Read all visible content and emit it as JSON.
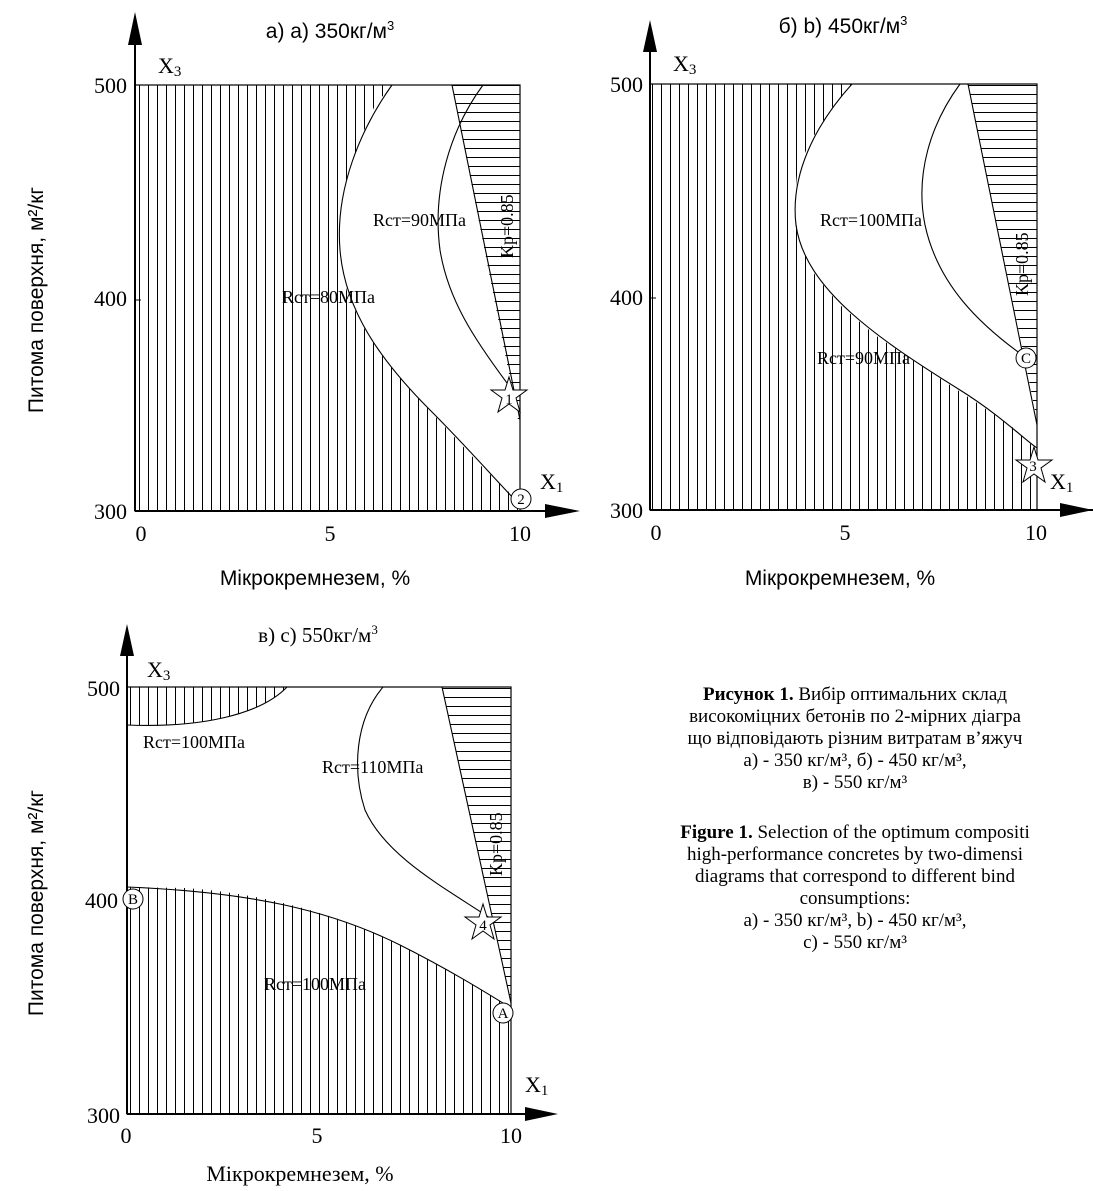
{
  "panels": [
    {
      "id": "a",
      "title_main": "а) a) 350кг/м",
      "title_sup": "3",
      "y_axis_var": "X",
      "y_axis_sub": "3",
      "x_axis_var": "X",
      "x_axis_sub": "1",
      "y_ticks": [
        "300",
        "400",
        "500"
      ],
      "x_ticks": [
        "0",
        "5",
        "10"
      ],
      "x_label": "Мікрокремнезем, %",
      "y_label": "Питома поверхня,  м²/кг",
      "annotations": [
        "Rст=80МПа",
        "Rст=90МПа",
        "Kр=0.85"
      ],
      "markers": [
        "1",
        "2"
      ]
    },
    {
      "id": "b",
      "title_main": "б)  b) 450кг/м",
      "title_sup": "3",
      "y_axis_var": "X",
      "y_axis_sub": "3",
      "x_axis_var": "X",
      "x_axis_sub": "1",
      "y_ticks": [
        "300",
        "400",
        "500"
      ],
      "x_ticks": [
        "0",
        "5",
        "10"
      ],
      "x_label": "Мікрокремнезем, %",
      "annotations": [
        "Rст=100МПа",
        "Rст=90МПа",
        "Kр=0.85"
      ],
      "markers": [
        "C",
        "3"
      ]
    },
    {
      "id": "c",
      "title_main": "в)  c) 550кг/м",
      "title_sup": "3",
      "y_axis_var": "X",
      "y_axis_sub": "3",
      "x_axis_var": "X",
      "x_axis_sub": "1",
      "y_ticks": [
        "300",
        "400",
        "500"
      ],
      "x_ticks": [
        "0",
        "5",
        "10"
      ],
      "x_label": "Мікрокремнезем, %",
      "y_label": "Питома поверхня,  м²/кг",
      "annotations": [
        "Rст=100МПа",
        "Rст=110МПа",
        "Kр=0.85",
        "Rст=100МПа"
      ],
      "markers": [
        "B",
        "4",
        "A"
      ]
    }
  ],
  "caption": {
    "ua_bold": "Рисунок 1.",
    "ua_line1": " Вибір оптимальних склад",
    "ua_line2": "високоміцних бетонів по 2-мірних діагра",
    "ua_line3": "що відповідають різним витратам в’яжуч",
    "ua_line4": "а) - 350 кг/м³, б) - 450 кг/м³,",
    "ua_line5": "в) - 550 кг/м³",
    "en_bold": "Figure 1.",
    "en_line1": " Selection of the optimum compositi",
    "en_line2": "high-performance concretes by two-dimensi",
    "en_line3": "diagrams that correspond to different bind",
    "en_line4": "consumptions:",
    "en_line5": "a) - 350 кг/м³, b) - 450 кг/м³,",
    "en_line6": "c) - 550 кг/м³"
  },
  "chart_data": [
    {
      "type": "contour",
      "x_var": "Мікрокремнезем, %",
      "y_var": "Питома поверхня, м²/кг",
      "xlim": [
        0,
        10
      ],
      "ylim": [
        300,
        500
      ],
      "contours": [
        {
          "label": "Rст=80МПа",
          "points": [
            [
              6.2,
              500
            ],
            [
              5.4,
              440
            ],
            [
              5.6,
              400
            ],
            [
              6.8,
              360
            ],
            [
              8.6,
              325
            ],
            [
              10,
              305
            ]
          ]
        },
        {
          "label": "Rст=90МПа",
          "points": [
            [
              8.4,
              500
            ],
            [
              7.6,
              450
            ],
            [
              7.8,
              415
            ],
            [
              8.6,
              385
            ],
            [
              9.7,
              355
            ]
          ]
        },
        {
          "label": "Kр=0.85",
          "points": [
            [
              8.2,
              500
            ],
            [
              10,
              350
            ]
          ]
        }
      ],
      "markers": [
        {
          "label": "1",
          "x": 9.7,
          "y": 355,
          "shape": "star"
        },
        {
          "label": "2",
          "x": 10,
          "y": 305,
          "shape": "circle"
        }
      ]
    },
    {
      "type": "contour",
      "x_var": "Мікрокремнезем, %",
      "y_var": "Питома поверхня, м²/кг",
      "xlim": [
        0,
        10
      ],
      "ylim": [
        300,
        500
      ],
      "contours": [
        {
          "label": "Rст=90МПа",
          "points": [
            [
              4.9,
              500
            ],
            [
              3.8,
              450
            ],
            [
              4.3,
              410
            ],
            [
              6.0,
              375
            ],
            [
              8.2,
              345
            ],
            [
              10,
              325
            ]
          ]
        },
        {
          "label": "Rст=100МПа",
          "points": [
            [
              8.0,
              500
            ],
            [
              6.9,
              450
            ],
            [
              7.4,
              410
            ],
            [
              8.6,
              385
            ],
            [
              9.8,
              372
            ]
          ]
        },
        {
          "label": "Kр=0.85",
          "points": [
            [
              8.2,
              500
            ],
            [
              10,
              345
            ]
          ]
        }
      ],
      "markers": [
        {
          "label": "C",
          "x": 9.8,
          "y": 372,
          "shape": "circle"
        },
        {
          "label": "3",
          "x": 10,
          "y": 322,
          "shape": "star"
        }
      ]
    },
    {
      "type": "contour",
      "x_var": "Мікрокремнезем, %",
      "y_var": "Питома поверхня, м²/кг",
      "xlim": [
        0,
        10
      ],
      "ylim": [
        300,
        500
      ],
      "contours": [
        {
          "label": "Rст=100МПа",
          "points": [
            [
              0,
              482
            ],
            [
              2.6,
              478
            ],
            [
              4.3,
              500
            ]
          ]
        },
        {
          "label": "Rст=110МПа",
          "points": [
            [
              6.6,
              500
            ],
            [
              6.0,
              455
            ],
            [
              6.5,
              420
            ],
            [
              8.0,
              398
            ],
            [
              9.4,
              380
            ]
          ]
        },
        {
          "label": "Kр=0.85",
          "points": [
            [
              8.2,
              500
            ],
            [
              10,
              360
            ]
          ]
        },
        {
          "label": "Rст=100МПа",
          "points": [
            [
              0,
              400
            ],
            [
              4.0,
              396
            ],
            [
              7.2,
              378
            ],
            [
              9.2,
              352
            ],
            [
              10,
              340
            ]
          ]
        }
      ],
      "markers": [
        {
          "label": "B",
          "x": 0,
          "y": 400,
          "shape": "circle"
        },
        {
          "label": "4",
          "x": 9.4,
          "y": 380,
          "shape": "star"
        },
        {
          "label": "A",
          "x": 10,
          "y": 340,
          "shape": "circle"
        }
      ]
    }
  ]
}
